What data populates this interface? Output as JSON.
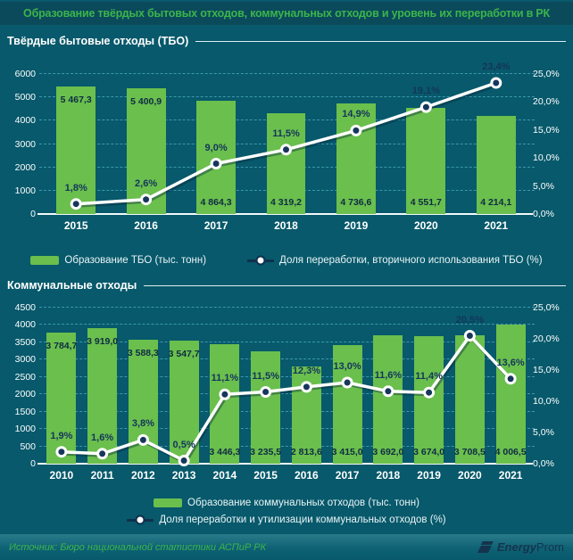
{
  "title": "Образование твёрдых бытовых отходов, коммунальных отходов и уровень их переработки в РК",
  "colors": {
    "background_teal": "#07596b",
    "title_band_teal": "#0a4a5b",
    "accent_green": "#3cb44b",
    "bar_green": "#6abf4d",
    "line_white": "#ffffff",
    "marker_navy": "#16365c",
    "label_navy": "#14355c",
    "grid_blue": "#3e97ad"
  },
  "chart_data": [
    {
      "type": "bar",
      "section_title": "Твёрдые бытовые отходы (ТБО)",
      "categories": [
        "2015",
        "2016",
        "2017",
        "2018",
        "2019",
        "2020",
        "2021"
      ],
      "bar_series": {
        "name": "Образование ТБО (тыс. тонн)",
        "values": [
          5467.3,
          5400.9,
          4864.3,
          4319.2,
          4736.6,
          4551.7,
          4214.1
        ],
        "labels": [
          "5 467,3",
          "5 400,9",
          "4 864,3",
          "4 319,2",
          "4 736,6",
          "4 551,7",
          "4 214,1"
        ],
        "label_pos": [
          "top",
          "top",
          "bottom",
          "bottom",
          "bottom",
          "bottom",
          "bottom"
        ]
      },
      "line_series": {
        "name": "Доля переработки, вторичного использования ТБО (%)",
        "values": [
          1.8,
          2.6,
          9.0,
          11.5,
          14.9,
          19.1,
          23.4
        ],
        "labels": [
          "1,8%",
          "2,6%",
          "9,0%",
          "11,5%",
          "14,9%",
          "19,1%",
          "23,4%"
        ]
      },
      "y_left": {
        "min": 0,
        "max": 6000,
        "step": 1000,
        "tick_labels": [
          "0",
          "1000",
          "2000",
          "3000",
          "4000",
          "5000",
          "6000"
        ]
      },
      "y_right": {
        "min": 0,
        "max": 25,
        "step": 5,
        "tick_labels": [
          "0,0%",
          "5,0%",
          "10,0%",
          "15,0%",
          "20,0%",
          "25,0%"
        ]
      },
      "grid": true,
      "legend_position": "bottom"
    },
    {
      "type": "bar",
      "section_title": "Коммунальные отходы",
      "categories": [
        "2010",
        "2011",
        "2012",
        "2013",
        "2014",
        "2015",
        "2016",
        "2017",
        "2018",
        "2019",
        "2020",
        "2021"
      ],
      "bar_series": {
        "name": "Образование коммунальных отходов (тыс. тонн)",
        "values": [
          3784.7,
          3919.0,
          3588.3,
          3547.7,
          3446.3,
          3235.5,
          2813.6,
          3415.0,
          3692.0,
          3674.0,
          3708.5,
          4006.5
        ],
        "labels": [
          "3 784,7",
          "3 919,0",
          "3 588,3",
          "3 547,7",
          "3 446,3",
          "3 235,5",
          "2 813,6",
          "3 415,0",
          "3 692,0",
          "3 674,0",
          "3 708,5",
          "4 006,5"
        ],
        "label_pos": [
          "top",
          "top",
          "top",
          "top",
          "bottom",
          "bottom",
          "bottom",
          "bottom",
          "bottom",
          "bottom",
          "bottom",
          "bottom"
        ]
      },
      "line_series": {
        "name": "Доля переработки и утилизации коммунальных отходов (%)",
        "values": [
          1.9,
          1.6,
          3.8,
          0.5,
          11.1,
          11.5,
          12.3,
          13.0,
          11.6,
          11.4,
          20.5,
          13.6
        ],
        "labels": [
          "1,9%",
          "1,6%",
          "3,8%",
          "0,5%",
          "11,1%",
          "11,5%",
          "12,3%",
          "13,0%",
          "11,6%",
          "11,4%",
          "20,5%",
          "13,6%"
        ]
      },
      "y_left": {
        "min": 0,
        "max": 4500,
        "step": 500,
        "tick_labels": [
          "0",
          "500",
          "1000",
          "1500",
          "2000",
          "2500",
          "3000",
          "3500",
          "4000",
          "4500"
        ]
      },
      "y_right": {
        "min": 0,
        "max": 25,
        "step": 5,
        "tick_labels": [
          "0,0%",
          "5,0%",
          "10,0%",
          "15,0%",
          "20,0%",
          "25,0%"
        ]
      },
      "grid": true,
      "legend_position": "bottom"
    }
  ],
  "footer": {
    "source": "Источник: Бюро национальной статистики АСПиР РК",
    "brand_bold": "Energy",
    "brand_regular": "Prom"
  }
}
